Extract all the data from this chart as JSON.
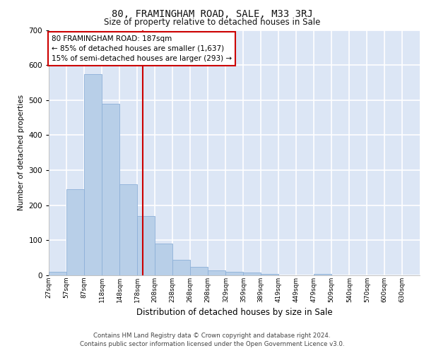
{
  "title": "80, FRAMINGHAM ROAD, SALE, M33 3RJ",
  "subtitle": "Size of property relative to detached houses in Sale",
  "xlabel": "Distribution of detached houses by size in Sale",
  "ylabel": "Number of detached properties",
  "bar_color": "#b8cfe8",
  "bar_edge_color": "#8db0d8",
  "background_color": "#dce6f5",
  "grid_color": "#ffffff",
  "bin_starts": [
    27,
    57,
    87,
    118,
    148,
    178,
    208,
    238,
    268,
    298,
    329,
    359,
    389,
    419,
    449,
    479,
    509,
    540,
    570,
    600,
    630
  ],
  "bin_width": 30,
  "bar_heights": [
    10,
    245,
    575,
    490,
    260,
    170,
    90,
    45,
    25,
    15,
    10,
    8,
    4,
    0,
    0,
    4,
    0,
    0,
    0,
    0,
    0
  ],
  "property_size": 187,
  "red_line_color": "#cc0000",
  "annotation_text": "80 FRAMINGHAM ROAD: 187sqm\n← 85% of detached houses are smaller (1,637)\n15% of semi-detached houses are larger (293) →",
  "annotation_box_color": "#ffffff",
  "annotation_box_edge_color": "#cc0000",
  "ylim": [
    0,
    700
  ],
  "yticks": [
    0,
    100,
    200,
    300,
    400,
    500,
    600,
    700
  ],
  "footer1": "Contains HM Land Registry data © Crown copyright and database right 2024.",
  "footer2": "Contains public sector information licensed under the Open Government Licence v3.0.",
  "tick_labels": [
    "27sqm",
    "57sqm",
    "87sqm",
    "118sqm",
    "148sqm",
    "178sqm",
    "208sqm",
    "238sqm",
    "268sqm",
    "298sqm",
    "329sqm",
    "359sqm",
    "389sqm",
    "419sqm",
    "449sqm",
    "479sqm",
    "509sqm",
    "540sqm",
    "570sqm",
    "600sqm",
    "630sqm"
  ]
}
